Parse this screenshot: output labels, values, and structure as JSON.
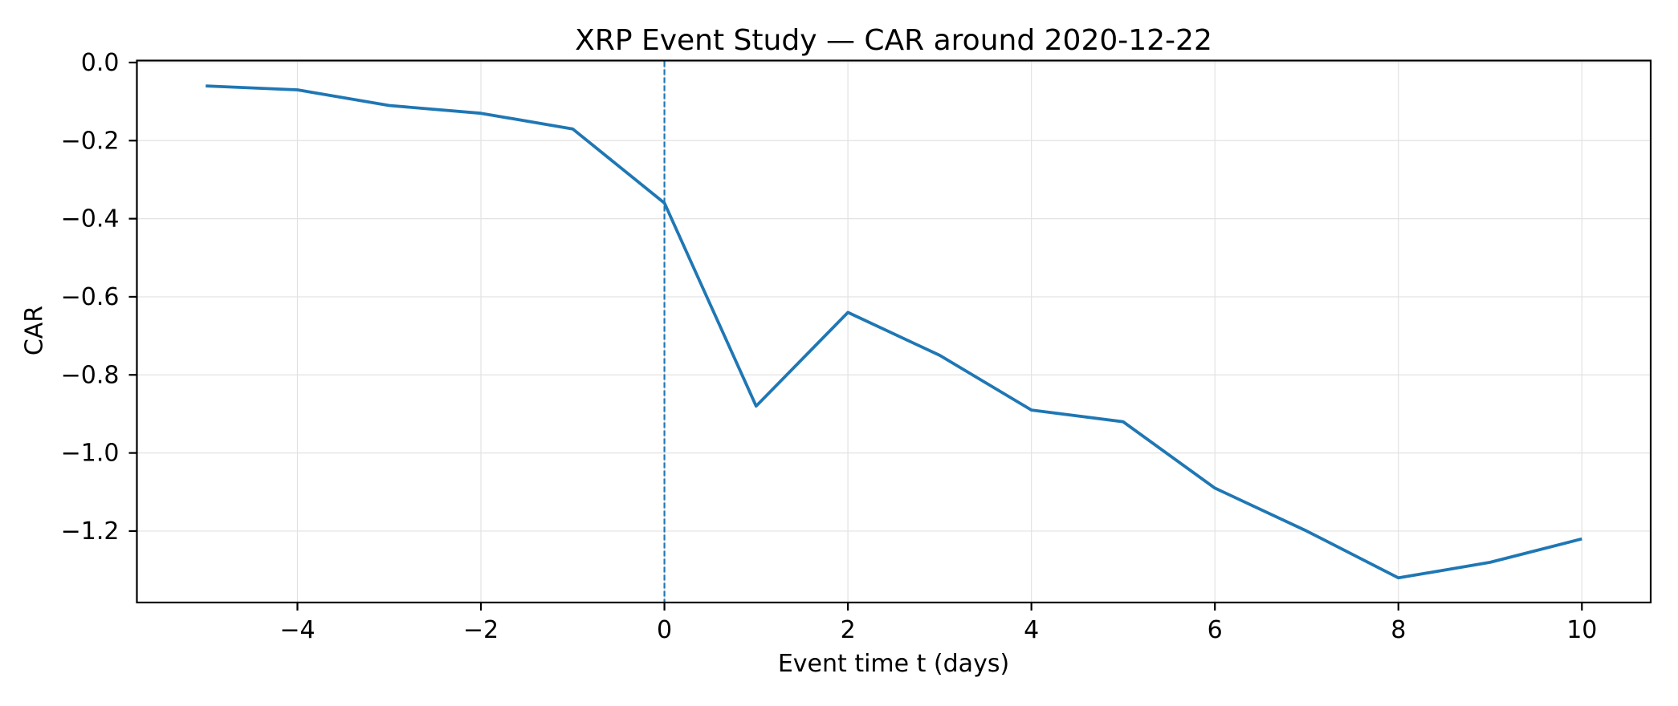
{
  "figure": {
    "title": "XRP Event Study — CAR around 2020-12-22",
    "xlabel": "Event time t (days)",
    "ylabel": "CAR"
  },
  "colors": {
    "background": "#ffffff",
    "line": "#1f77b4",
    "event_vline": "#1f77b4",
    "grid": "#e2e2e2",
    "spine": "#000000",
    "text": "#000000"
  },
  "chart_data": {
    "type": "line",
    "title": "XRP Event Study — CAR around 2020-12-22",
    "xlabel": "Event time t (days)",
    "ylabel": "CAR",
    "series_name": "CAR",
    "x": [
      -5,
      -4,
      -3,
      -2,
      -1,
      0,
      1,
      2,
      3,
      4,
      5,
      6,
      7,
      8,
      9,
      10
    ],
    "y": [
      -0.06,
      -0.07,
      -0.11,
      -0.13,
      -0.17,
      -0.36,
      -0.88,
      -0.64,
      -0.75,
      -0.89,
      -0.92,
      -1.09,
      -1.2,
      -1.32,
      -1.28,
      -1.22
    ],
    "event_vline_x": 0,
    "xlim": [
      -5.75,
      10.75
    ],
    "ylim": [
      -1.383,
      0.005
    ],
    "xticks": {
      "values": [
        -4,
        -2,
        0,
        2,
        4,
        6,
        8,
        10
      ],
      "labels": [
        "−4",
        "−2",
        "0",
        "2",
        "4",
        "6",
        "8",
        "10"
      ]
    },
    "yticks": {
      "values": [
        0,
        -0.2,
        -0.4,
        -0.6,
        -0.8,
        -1.0,
        -1.2
      ],
      "labels": [
        "0.0",
        "−0.2",
        "−0.4",
        "−0.6",
        "−0.8",
        "−1.0",
        "−1.2"
      ]
    },
    "grid": true,
    "legend": "none",
    "line_style": {
      "color": "#1f77b4",
      "width": 3.8
    },
    "event_vline_style": {
      "color": "#1f77b4",
      "width": 2.2,
      "dash": "7 3"
    }
  }
}
